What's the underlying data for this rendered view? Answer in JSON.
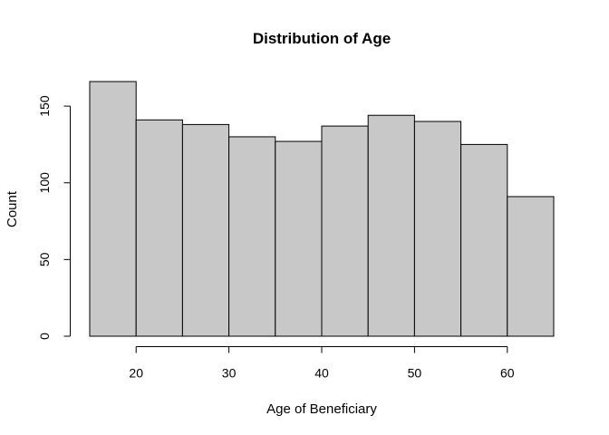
{
  "chart_data": {
    "type": "bar",
    "title": "Distribution of Age",
    "xlabel": "Age of Beneficiary",
    "ylabel": "Count",
    "bins": [
      {
        "start": 15,
        "end": 20,
        "count": 166
      },
      {
        "start": 20,
        "end": 25,
        "count": 141
      },
      {
        "start": 25,
        "end": 30,
        "count": 138
      },
      {
        "start": 30,
        "end": 35,
        "count": 130
      },
      {
        "start": 35,
        "end": 40,
        "count": 127
      },
      {
        "start": 40,
        "end": 45,
        "count": 137
      },
      {
        "start": 45,
        "end": 50,
        "count": 144
      },
      {
        "start": 50,
        "end": 55,
        "count": 140
      },
      {
        "start": 55,
        "end": 60,
        "count": 125
      },
      {
        "start": 60,
        "end": 65,
        "count": 91
      }
    ],
    "x_ticks": [
      20,
      30,
      40,
      50,
      60
    ],
    "y_ticks": [
      0,
      50,
      100,
      150
    ],
    "xlim": [
      15,
      65
    ],
    "ylim": [
      0,
      166
    ],
    "grid": false,
    "bar_color": "#c8c8c8",
    "edge_color": "#000000"
  }
}
